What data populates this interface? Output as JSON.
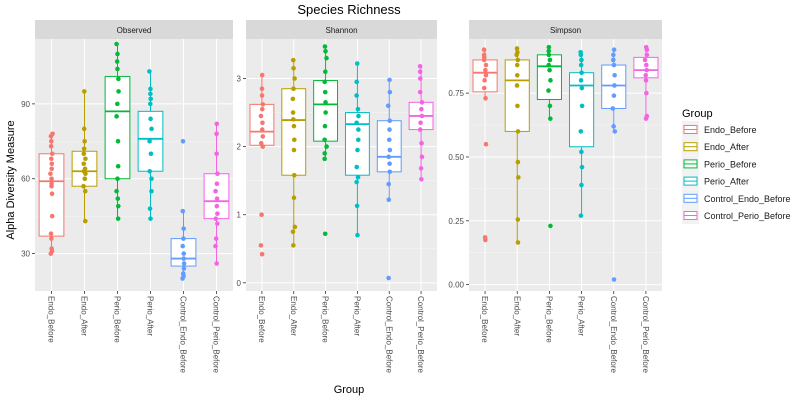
{
  "chart_data": {
    "type": "box",
    "title": "Species Richness",
    "xlabel": "Group",
    "ylabel": "Alpha Diversity Measure",
    "legend": {
      "title": "Group",
      "position": "right"
    },
    "categories": [
      "Endo_Before",
      "Endo_After",
      "Perio_Before",
      "Perio_After",
      "Control_Endo_Before",
      "Control_Perio_Before"
    ],
    "colors": [
      "#F8766D",
      "#B79F00",
      "#00BA38",
      "#00BFC4",
      "#619CFF",
      "#F564E3"
    ],
    "grid": true,
    "panels": [
      {
        "name": "Observed",
        "ylim": [
          15,
          116
        ],
        "yticks": [
          30,
          60,
          90
        ],
        "ytick_labels": [
          "30",
          "60",
          "90"
        ],
        "boxes": [
          {
            "group": "Endo_Before",
            "q1": 37,
            "median": 59,
            "q3": 70,
            "whisker_low": 30,
            "whisker_high": 78,
            "points": [
              30,
              31,
              32,
              36,
              38,
              45,
              54,
              57,
              58,
              60,
              62,
              64,
              66,
              68,
              70,
              73,
              75,
              77,
              78
            ]
          },
          {
            "group": "Endo_After",
            "q1": 57,
            "median": 63,
            "q3": 71,
            "whisker_low": 43,
            "whisker_high": 95,
            "points": [
              43,
              55,
              57,
              60,
              62,
              63,
              64,
              66,
              68,
              70,
              72,
              75,
              80,
              95
            ]
          },
          {
            "group": "Perio_Before",
            "q1": 60,
            "median": 87,
            "q3": 101,
            "whisker_low": 44,
            "whisker_high": 114,
            "points": [
              44,
              49,
              52,
              55,
              60,
              65,
              75,
              85,
              90,
              95,
              100,
              104,
              107,
              110,
              114
            ]
          },
          {
            "group": "Perio_After",
            "q1": 63,
            "median": 76,
            "q3": 87,
            "whisker_low": 44,
            "whisker_high": 103,
            "points": [
              44,
              48,
              55,
              60,
              63,
              70,
              75,
              80,
              84,
              90,
              92,
              94,
              96,
              103
            ]
          },
          {
            "group": "Control_Endo_Before",
            "q1": 25,
            "median": 28,
            "q3": 36,
            "whisker_low": 20,
            "whisker_high": 47,
            "points": [
              20,
              21,
              22,
              24,
              26,
              28,
              30,
              33,
              36,
              40,
              47,
              75
            ]
          },
          {
            "group": "Control_Perio_Before",
            "q1": 44,
            "median": 51,
            "q3": 62,
            "whisker_low": 26,
            "whisker_high": 82,
            "points": [
              26,
              33,
              36,
              42,
              44,
              46,
              49,
              52,
              55,
              58,
              62,
              70,
              78,
              82
            ]
          }
        ]
      },
      {
        "name": "Shannon",
        "ylim": [
          -0.12,
          3.58
        ],
        "yticks": [
          0,
          1,
          2,
          3
        ],
        "ytick_labels": [
          "0",
          "1",
          "2",
          "3"
        ],
        "boxes": [
          {
            "group": "Endo_Before",
            "q1": 2.02,
            "median": 2.22,
            "q3": 2.62,
            "whisker_low": 2.0,
            "whisker_high": 3.05,
            "points": [
              0.42,
              0.55,
              1.0,
              2.0,
              2.05,
              2.15,
              2.25,
              2.35,
              2.45,
              2.55,
              2.62,
              2.75,
              2.85,
              3.05
            ]
          },
          {
            "group": "Endo_After",
            "q1": 1.58,
            "median": 2.39,
            "q3": 2.85,
            "whisker_low": 0.55,
            "whisker_high": 3.27,
            "points": [
              0.55,
              0.75,
              0.82,
              1.25,
              1.58,
              1.95,
              2.1,
              2.3,
              2.4,
              2.5,
              2.7,
              2.85,
              3.0,
              3.15,
              3.27
            ]
          },
          {
            "group": "Perio_Before",
            "q1": 2.08,
            "median": 2.62,
            "q3": 2.97,
            "whisker_low": 1.82,
            "whisker_high": 3.47,
            "points": [
              0.72,
              1.82,
              1.9,
              2.0,
              2.1,
              2.3,
              2.5,
              2.65,
              2.8,
              2.95,
              3.1,
              3.3,
              3.4,
              3.47
            ]
          },
          {
            "group": "Perio_After",
            "q1": 1.58,
            "median": 2.33,
            "q3": 2.5,
            "whisker_low": 0.7,
            "whisker_high": 3.22,
            "points": [
              0.7,
              1.13,
              1.48,
              1.55,
              1.7,
              1.95,
              2.1,
              2.25,
              2.35,
              2.45,
              2.55,
              2.75,
              2.95,
              3.22
            ]
          },
          {
            "group": "Control_Endo_Before",
            "q1": 1.63,
            "median": 1.85,
            "q3": 2.38,
            "whisker_low": 1.22,
            "whisker_high": 2.98,
            "points": [
              0.07,
              1.22,
              1.45,
              1.63,
              1.75,
              1.85,
              1.95,
              2.1,
              2.25,
              2.38,
              2.6,
              2.8,
              2.98
            ]
          },
          {
            "group": "Control_Perio_Before",
            "q1": 2.25,
            "median": 2.45,
            "q3": 2.65,
            "whisker_low": 1.52,
            "whisker_high": 3.18,
            "points": [
              1.52,
              1.68,
              1.85,
              2.05,
              2.25,
              2.35,
              2.45,
              2.55,
              2.65,
              2.8,
              3.0,
              3.1,
              3.18
            ]
          }
        ]
      },
      {
        "name": "Simpson",
        "ylim": [
          -0.025,
          0.962
        ],
        "yticks": [
          0,
          0.25,
          0.5,
          0.75
        ],
        "ytick_labels": [
          "0.00",
          "0.25",
          "0.50",
          "0.75"
        ],
        "boxes": [
          {
            "group": "Endo_Before",
            "q1": 0.755,
            "median": 0.83,
            "q3": 0.88,
            "whisker_low": 0.72,
            "whisker_high": 0.92,
            "points": [
              0.175,
              0.185,
              0.55,
              0.73,
              0.77,
              0.8,
              0.82,
              0.84,
              0.86,
              0.88,
              0.89,
              0.9,
              0.92
            ]
          },
          {
            "group": "Endo_After",
            "q1": 0.6,
            "median": 0.8,
            "q3": 0.88,
            "whisker_low": 0.165,
            "whisker_high": 0.925,
            "points": [
              0.165,
              0.255,
              0.42,
              0.48,
              0.6,
              0.7,
              0.78,
              0.82,
              0.86,
              0.88,
              0.9,
              0.91,
              0.925
            ]
          },
          {
            "group": "Perio_Before",
            "q1": 0.725,
            "median": 0.855,
            "q3": 0.9,
            "whisker_low": 0.65,
            "whisker_high": 0.93,
            "points": [
              0.23,
              0.65,
              0.7,
              0.76,
              0.8,
              0.84,
              0.86,
              0.88,
              0.9,
              0.915,
              0.93
            ]
          },
          {
            "group": "Perio_After",
            "q1": 0.54,
            "median": 0.78,
            "q3": 0.83,
            "whisker_low": 0.27,
            "whisker_high": 0.91,
            "points": [
              0.27,
              0.39,
              0.46,
              0.52,
              0.6,
              0.7,
              0.77,
              0.8,
              0.83,
              0.86,
              0.88,
              0.9,
              0.91
            ]
          },
          {
            "group": "Control_Endo_Before",
            "q1": 0.69,
            "median": 0.78,
            "q3": 0.86,
            "whisker_low": 0.6,
            "whisker_high": 0.92,
            "points": [
              0.02,
              0.6,
              0.62,
              0.69,
              0.74,
              0.78,
              0.82,
              0.86,
              0.88,
              0.9,
              0.92
            ]
          },
          {
            "group": "Control_Perio_Before",
            "q1": 0.81,
            "median": 0.84,
            "q3": 0.89,
            "whisker_low": 0.65,
            "whisker_high": 0.93,
            "points": [
              0.65,
              0.66,
              0.75,
              0.8,
              0.82,
              0.84,
              0.86,
              0.88,
              0.9,
              0.92,
              0.93
            ]
          }
        ]
      }
    ]
  }
}
